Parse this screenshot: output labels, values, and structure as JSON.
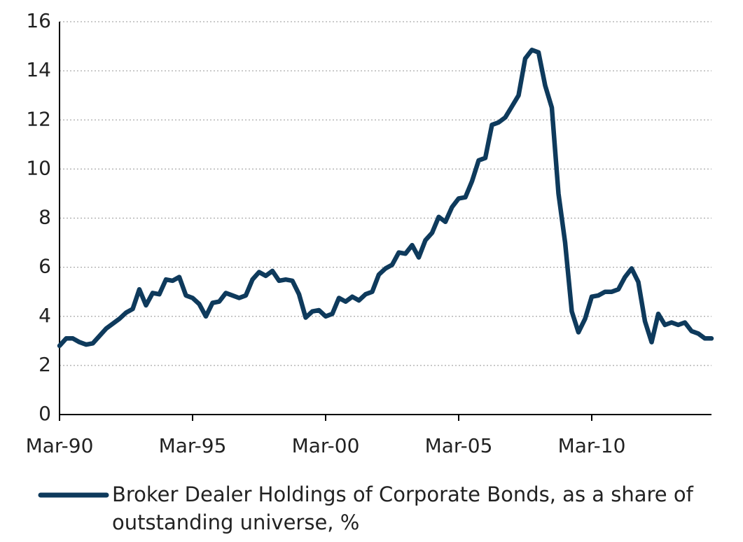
{
  "chart_data": {
    "type": "line",
    "x": [
      1990.25,
      1990.5,
      1990.75,
      1991,
      1991.25,
      1991.5,
      1991.75,
      1992,
      1992.25,
      1992.5,
      1992.75,
      1993,
      1993.25,
      1993.5,
      1993.75,
      1994,
      1994.25,
      1994.5,
      1994.75,
      1995,
      1995.25,
      1995.5,
      1995.75,
      1996,
      1996.25,
      1996.5,
      1996.75,
      1997,
      1997.25,
      1997.5,
      1997.75,
      1998,
      1998.25,
      1998.5,
      1998.75,
      1999,
      1999.25,
      1999.5,
      1999.75,
      2000,
      2000.25,
      2000.5,
      2000.75,
      2001,
      2001.25,
      2001.5,
      2001.75,
      2002,
      2002.25,
      2002.5,
      2002.75,
      2003,
      2003.25,
      2003.5,
      2003.75,
      2004,
      2004.25,
      2004.5,
      2004.75,
      2005,
      2005.25,
      2005.5,
      2005.75,
      2006,
      2006.25,
      2006.5,
      2006.75,
      2007,
      2007.25,
      2007.5,
      2007.75,
      2008,
      2008.25,
      2008.5,
      2008.75,
      2009,
      2009.25,
      2009.5,
      2009.75,
      2010,
      2010.25,
      2010.5,
      2010.75,
      2011,
      2011.25,
      2011.5,
      2011.75,
      2012,
      2012.25,
      2012.5,
      2012.75,
      2013,
      2013.25,
      2013.5,
      2013.75,
      2014,
      2014.25,
      2014.5,
      2014.75
    ],
    "series": [
      {
        "name": "Broker Dealer Holdings of Corporate Bonds, as a share of outstanding universe, %",
        "color": "#0e3a5c",
        "values": [
          2.8,
          3.1,
          3.1,
          2.95,
          2.85,
          2.9,
          3.2,
          3.5,
          3.7,
          3.9,
          4.15,
          4.3,
          5.1,
          4.45,
          4.95,
          4.9,
          5.5,
          5.45,
          5.6,
          4.85,
          4.75,
          4.5,
          4.0,
          4.55,
          4.6,
          4.95,
          4.85,
          4.75,
          4.85,
          5.5,
          5.8,
          5.65,
          5.85,
          5.45,
          5.5,
          5.45,
          4.9,
          3.95,
          4.2,
          4.25,
          4.0,
          4.1,
          4.75,
          4.6,
          4.8,
          4.65,
          4.9,
          5.0,
          5.7,
          5.95,
          6.1,
          6.6,
          6.55,
          6.9,
          6.4,
          7.1,
          7.4,
          8.05,
          7.85,
          8.45,
          8.8,
          8.85,
          9.5,
          10.35,
          10.45,
          11.8,
          11.9,
          12.1,
          12.55,
          13.0,
          14.5,
          14.85,
          14.75,
          13.4,
          12.5,
          9.0,
          7.0,
          4.2,
          3.35,
          3.9,
          4.8,
          4.85,
          5.0,
          5.0,
          5.1,
          5.6,
          5.95,
          5.4,
          3.8,
          2.95,
          4.1,
          3.65,
          3.75,
          3.65,
          3.75,
          3.4,
          3.3,
          3.1,
          3.1
        ]
      }
    ],
    "xlim": [
      1990.25,
      2014.75
    ],
    "xticks": [
      {
        "value": 1990.25,
        "label": "Mar-90"
      },
      {
        "value": 1995.25,
        "label": "Mar-95"
      },
      {
        "value": 2000.25,
        "label": "Mar-00"
      },
      {
        "value": 2005.25,
        "label": "Mar-05"
      },
      {
        "value": 2010.25,
        "label": "Mar-10"
      }
    ],
    "ylim": [
      0,
      16
    ],
    "yticks": [
      0,
      2,
      4,
      6,
      8,
      10,
      12,
      14,
      16
    ],
    "grid": true,
    "legend": "bottom"
  }
}
